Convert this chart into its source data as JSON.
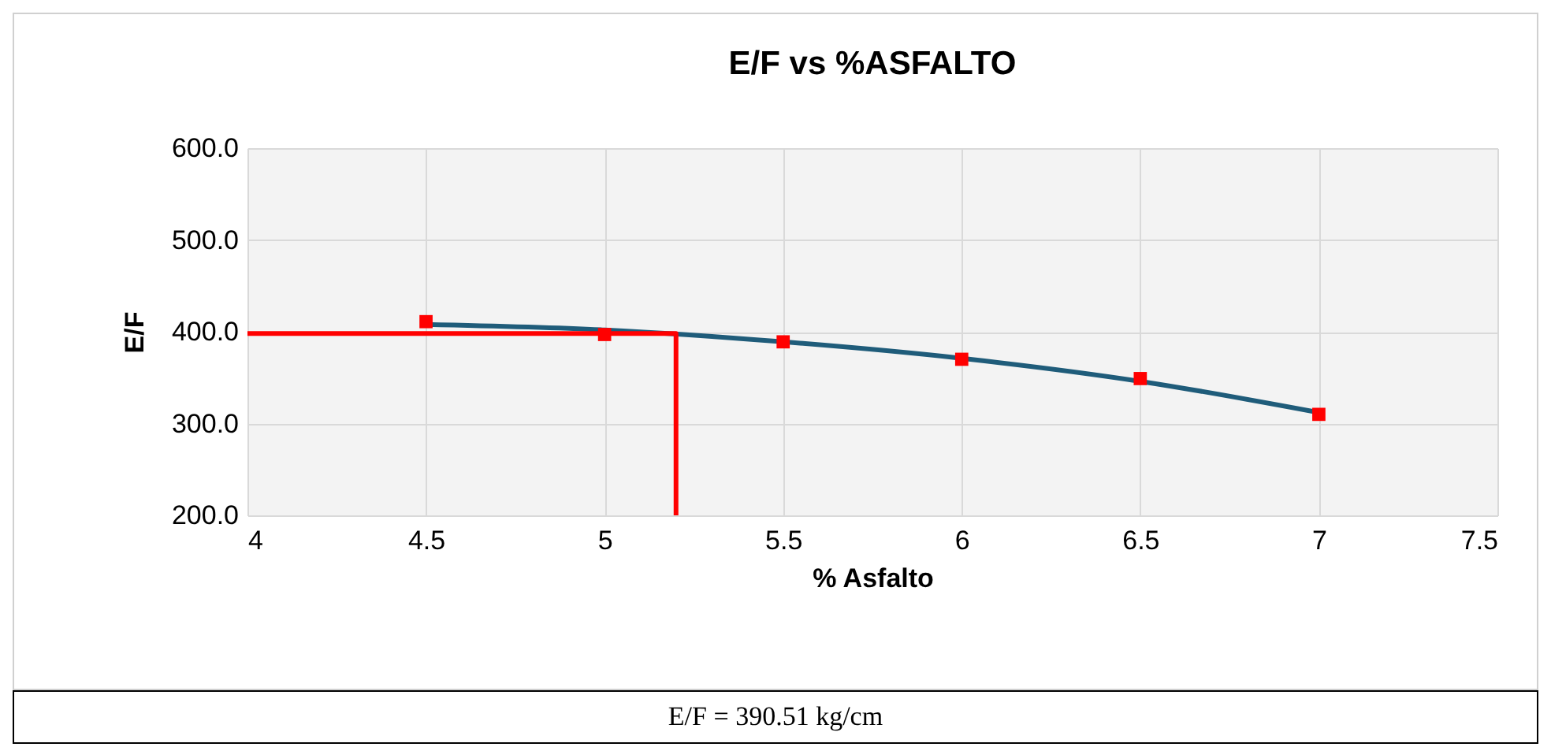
{
  "chart_data": {
    "type": "scatter",
    "title": "E/F vs %ASFALTO",
    "xlabel": "% Asfalto",
    "ylabel": "E/F",
    "xlim": [
      4,
      7.5
    ],
    "xticks": [
      4,
      4.5,
      5,
      5.5,
      6,
      6.5,
      7,
      7.5
    ],
    "ylim": [
      200,
      600
    ],
    "yticks": [
      {
        "value": 200,
        "label": "200.0"
      },
      {
        "value": 300,
        "label": "300.0"
      },
      {
        "value": 400,
        "label": "400.0"
      },
      {
        "value": 500,
        "label": "500.0"
      },
      {
        "value": 600,
        "label": "600.0"
      }
    ],
    "grid": true,
    "series": [
      {
        "type": "line",
        "color": "#1f5c7a",
        "marker": "none",
        "x": [
          4.5,
          5,
          5.5,
          6,
          6.5,
          7
        ],
        "values": [
          408,
          402,
          389,
          371,
          346,
          312
        ]
      },
      {
        "type": "line",
        "color": "#ff0000",
        "marker": "none",
        "x": [
          4,
          5.2,
          5.2
        ],
        "values": [
          398,
          398,
          200
        ]
      },
      {
        "color": "#ff0000",
        "marker": "square",
        "x": [
          4.5,
          5,
          5.5,
          6,
          6.5,
          7
        ],
        "values": [
          411,
          397,
          389,
          370,
          349,
          310
        ]
      }
    ],
    "annotations": [
      "E/F = 390.51 kg/cm"
    ]
  }
}
